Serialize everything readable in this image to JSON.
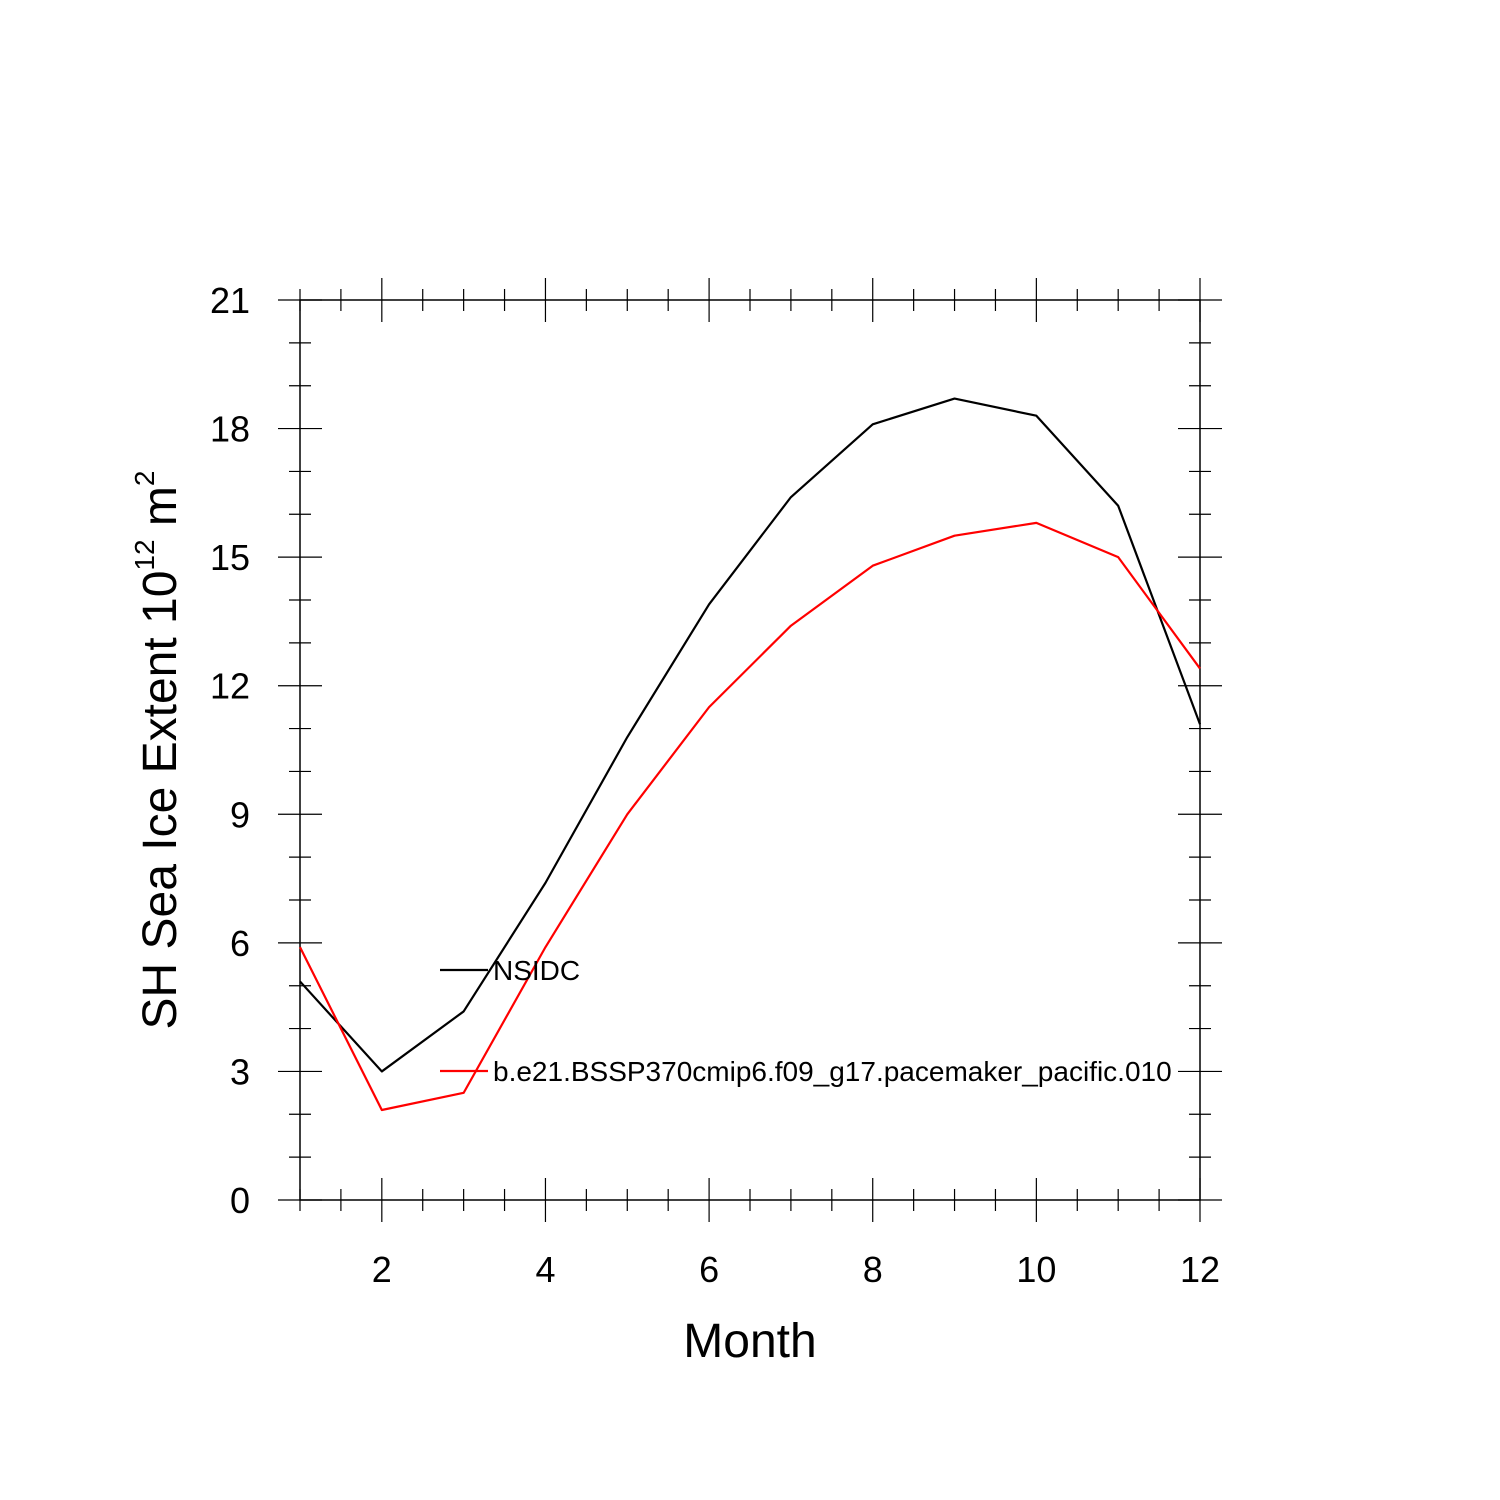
{
  "chart_data": {
    "type": "line",
    "xlabel": "Month",
    "ylabel_main": "SH Sea Ice Extent 10",
    "ylabel_exp": "12",
    "ylabel_unit": " m",
    "ylabel_unit_exp": "2",
    "xlim": [
      1,
      12
    ],
    "ylim": [
      0,
      21
    ],
    "x_ticks": [
      2,
      4,
      6,
      8,
      10,
      12
    ],
    "y_ticks": [
      0,
      3,
      6,
      9,
      12,
      15,
      18,
      21
    ],
    "grid": false,
    "legend_position": "inside-lower-left",
    "x": [
      1,
      2,
      3,
      4,
      5,
      6,
      7,
      8,
      9,
      10,
      11,
      12
    ],
    "series": [
      {
        "name": "NSIDC",
        "color": "#000000",
        "values": [
          5.1,
          3.0,
          4.4,
          7.4,
          10.8,
          13.9,
          16.4,
          18.1,
          18.7,
          18.3,
          16.2,
          11.1
        ]
      },
      {
        "name": "b.e21.BSSP370cmip6.f09_g17.pacemaker_pacific.010",
        "color": "#ff0000",
        "values": [
          5.9,
          2.1,
          2.5,
          5.9,
          9.0,
          11.5,
          13.4,
          14.8,
          15.5,
          15.8,
          15.0,
          12.4
        ]
      }
    ]
  }
}
